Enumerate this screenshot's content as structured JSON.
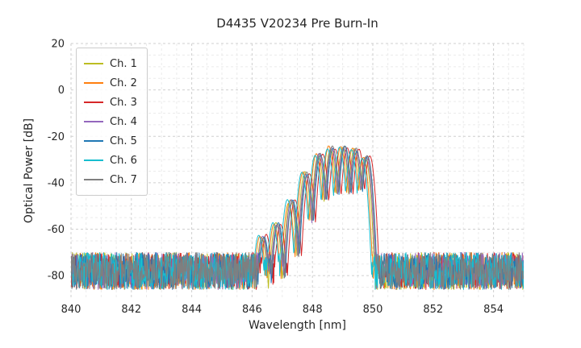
{
  "chart_data": {
    "type": "line",
    "title": "D4435 V20234 Pre Burn-In",
    "xlabel": "Wavelength [nm]",
    "ylabel": "Optical Power [dB]",
    "xlim": [
      840,
      855
    ],
    "ylim": [
      -90,
      20
    ],
    "xticks": [
      840,
      842,
      844,
      846,
      848,
      850,
      852,
      854
    ],
    "yticks": [
      20,
      0,
      -20,
      -40,
      -60,
      -80
    ],
    "x_minor_step": 0.5,
    "y_minor_step": 5,
    "grid": "both, dashed light gray",
    "legend": {
      "position": "upper left",
      "entries": [
        "Ch. 1",
        "Ch. 2",
        "Ch. 3",
        "Ch. 4",
        "Ch. 5",
        "Ch. 6",
        "Ch. 7"
      ]
    },
    "series": [
      {
        "name": "Ch. 1",
        "color": "#bcbd22",
        "offset_nm": -0.03
      },
      {
        "name": "Ch. 2",
        "color": "#ff7f0e",
        "offset_nm": -0.09
      },
      {
        "name": "Ch. 3",
        "color": "#d62728",
        "offset_nm": 0.12
      },
      {
        "name": "Ch. 4",
        "color": "#9467bd",
        "offset_nm": 0.0
      },
      {
        "name": "Ch. 5",
        "color": "#1f77b4",
        "offset_nm": 0.05
      },
      {
        "name": "Ch. 6",
        "color": "#17becf",
        "offset_nm": -0.13
      },
      {
        "name": "Ch. 7",
        "color": "#7f7f7f",
        "offset_nm": 0.03
      }
    ],
    "spectrum_model": {
      "noise_floor_db": {
        "mean": -78,
        "spread": 16
      },
      "modes": [
        {
          "center_nm": 846.35,
          "peak_db": -63.0
        },
        {
          "center_nm": 846.82,
          "peak_db": -57.5
        },
        {
          "center_nm": 847.3,
          "peak_db": -48.0
        },
        {
          "center_nm": 847.78,
          "peak_db": -36.0
        },
        {
          "center_nm": 848.22,
          "peak_db": -27.5
        },
        {
          "center_nm": 848.63,
          "peak_db": -24.8
        },
        {
          "center_nm": 849.03,
          "peak_db": -24.3
        },
        {
          "center_nm": 849.42,
          "peak_db": -25.8
        },
        {
          "center_nm": 849.78,
          "peak_db": -28.8
        }
      ],
      "lobe_sharpness_db_per_nm2": 520,
      "sample_step_nm": 0.015,
      "peak_jitter_db": 1.6
    }
  }
}
